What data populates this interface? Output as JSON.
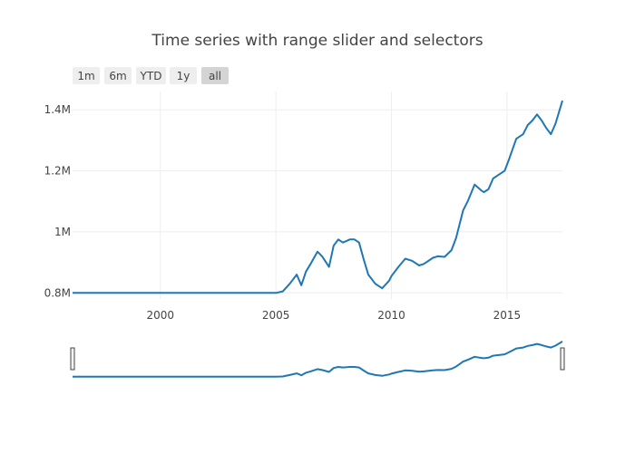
{
  "chart_data": {
    "type": "line",
    "title": "Time series with range slider and selectors",
    "xlabel": "",
    "ylabel": "",
    "xlim": [
      1996.2,
      2017.4
    ],
    "ylim": [
      780000,
      1460000
    ],
    "x_ticks": [
      2000,
      2005,
      2010,
      2015
    ],
    "x_tick_labels": [
      "2000",
      "2005",
      "2010",
      "2015"
    ],
    "y_ticks": [
      800000,
      1000000,
      1200000,
      1400000
    ],
    "y_tick_labels": [
      "0.8M",
      "1M",
      "1.2M",
      "1.4M"
    ],
    "grid": true,
    "range_selector": {
      "buttons": [
        "1m",
        "6m",
        "YTD",
        "1y",
        "all"
      ],
      "active": "all"
    },
    "range_slider": true,
    "series": [
      {
        "color": "#1f77b4",
        "x": [
          1996.2,
          2001.0,
          2005.0,
          2005.3,
          2005.6,
          2005.9,
          2006.1,
          2006.3,
          2006.5,
          2006.8,
          2007.0,
          2007.3,
          2007.5,
          2007.7,
          2007.9,
          2008.2,
          2008.4,
          2008.6,
          2008.8,
          2009.0,
          2009.3,
          2009.6,
          2009.9,
          2010.0,
          2010.3,
          2010.6,
          2010.9,
          2011.2,
          2011.4,
          2011.8,
          2012.0,
          2012.3,
          2012.6,
          2012.8,
          2013.1,
          2013.3,
          2013.6,
          2013.9,
          2014.0,
          2014.2,
          2014.4,
          2014.6,
          2014.9,
          2015.1,
          2015.4,
          2015.7,
          2015.9,
          2016.1,
          2016.3,
          2016.5,
          2016.7,
          2016.9,
          2017.1,
          2017.4
        ],
        "y": [
          800000,
          800000,
          800000,
          805000,
          830000,
          860000,
          825000,
          870000,
          895000,
          935000,
          920000,
          885000,
          955000,
          975000,
          965000,
          975000,
          975000,
          965000,
          910000,
          860000,
          830000,
          815000,
          840000,
          855000,
          885000,
          912000,
          905000,
          890000,
          895000,
          915000,
          920000,
          918000,
          940000,
          980000,
          1070000,
          1100000,
          1155000,
          1135000,
          1130000,
          1140000,
          1175000,
          1185000,
          1200000,
          1240000,
          1305000,
          1320000,
          1350000,
          1365000,
          1385000,
          1365000,
          1340000,
          1320000,
          1355000,
          1430000
        ]
      }
    ]
  }
}
